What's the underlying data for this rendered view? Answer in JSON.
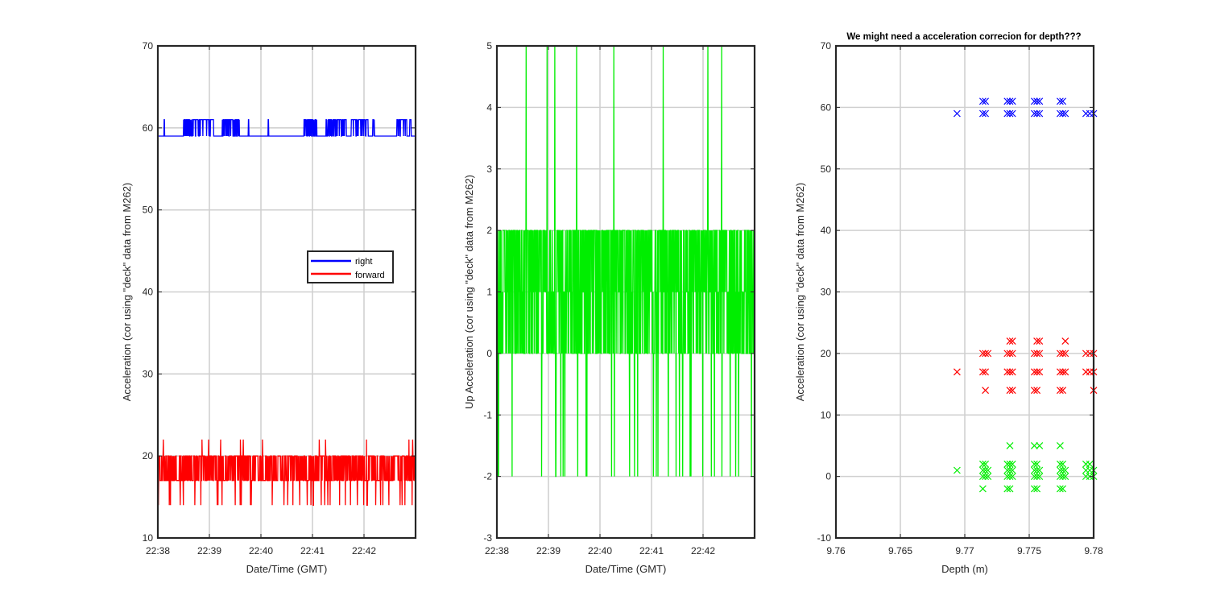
{
  "chart_data": [
    {
      "type": "line",
      "title": "",
      "xlabel": "Date/Time (GMT)",
      "ylabel": "Acceleration (cor using \"deck\" data from M262)",
      "ylim": [
        10,
        70
      ],
      "yticks": [
        "10",
        "20",
        "30",
        "40",
        "50",
        "60",
        "70"
      ],
      "xlim": [
        "22:38",
        "22:43"
      ],
      "xticks": [
        "22:38",
        "22:39",
        "22:40",
        "22:41",
        "22:42"
      ],
      "grid": true,
      "legend": {
        "placement": "center-right",
        "entries": [
          "right",
          "forward"
        ]
      },
      "series": [
        {
          "name": "right",
          "color": "#0000ff",
          "baseline": 59,
          "high": 61,
          "bursts": [
            [
              "22:38:07",
              "22:38:08"
            ],
            [
              "22:38:30",
              "22:39:05"
            ],
            [
              "22:39:15",
              "22:39:35"
            ],
            [
              "22:39:45",
              "22:39:46"
            ],
            [
              "22:40:08",
              "22:40:09"
            ],
            [
              "22:40:50",
              "22:41:05"
            ],
            [
              "22:41:15",
              "22:41:40"
            ],
            [
              "22:41:45",
              "22:42:05"
            ],
            [
              "22:42:10",
              "22:42:12"
            ],
            [
              "22:42:38",
              "22:42:50"
            ],
            [
              "22:42:53",
              "22:42:55"
            ]
          ]
        },
        {
          "name": "forward",
          "color": "#ff0000",
          "typical_range": [
            17,
            20
          ],
          "low_spikes": 14,
          "high_spikes": 22
        }
      ]
    },
    {
      "type": "line",
      "title": "",
      "xlabel": "Date/Time (GMT)",
      "ylabel": "Up Acceleration (cor using \"deck\" data from M262)",
      "ylim": [
        -3,
        5
      ],
      "yticks": [
        "-3",
        "-2",
        "-1",
        "0",
        "1",
        "2",
        "3",
        "4",
        "5"
      ],
      "xlim": [
        "22:38",
        "22:43"
      ],
      "xticks": [
        "22:38",
        "22:39",
        "22:40",
        "22:41",
        "22:42"
      ],
      "grid": true,
      "series": [
        {
          "name": "up",
          "color": "#00ee00",
          "typical_range": [
            0,
            2
          ],
          "low_spikes": -2,
          "high_spikes": 5
        }
      ]
    },
    {
      "type": "scatter",
      "title": "We might need a acceleration correcion for depth???",
      "xlabel": "Depth (m)",
      "ylabel": "Acceleration (cor using \"deck\" data from M262)",
      "xlim": [
        9.76,
        9.78
      ],
      "ylim": [
        -10,
        70
      ],
      "xticks": [
        "9.76",
        "9.765",
        "9.77",
        "9.775",
        "9.78"
      ],
      "yticks": [
        "-10",
        "0",
        "10",
        "20",
        "30",
        "40",
        "50",
        "60",
        "70"
      ],
      "grid": true,
      "marker": "x",
      "series": [
        {
          "color": "#0000ff",
          "points": [
            [
              9.7694,
              59
            ],
            [
              9.7714,
              59
            ],
            [
              9.7714,
              61
            ],
            [
              9.7716,
              59
            ],
            [
              9.7716,
              61
            ],
            [
              9.7733,
              59
            ],
            [
              9.7733,
              61
            ],
            [
              9.7735,
              59
            ],
            [
              9.7735,
              61
            ],
            [
              9.7737,
              59
            ],
            [
              9.7737,
              61
            ],
            [
              9.7754,
              59
            ],
            [
              9.7754,
              61
            ],
            [
              9.7756,
              59
            ],
            [
              9.7756,
              61
            ],
            [
              9.7758,
              59
            ],
            [
              9.7758,
              61
            ],
            [
              9.7774,
              59
            ],
            [
              9.7774,
              61
            ],
            [
              9.7776,
              59
            ],
            [
              9.7776,
              61
            ],
            [
              9.7778,
              59
            ],
            [
              9.7794,
              59
            ],
            [
              9.7797,
              59
            ],
            [
              9.78,
              59
            ]
          ]
        },
        {
          "color": "#ff0000",
          "points": [
            [
              9.7694,
              17
            ],
            [
              9.7714,
              17
            ],
            [
              9.7714,
              20
            ],
            [
              9.7716,
              14
            ],
            [
              9.7716,
              17
            ],
            [
              9.7716,
              20
            ],
            [
              9.7718,
              20
            ],
            [
              9.7733,
              17
            ],
            [
              9.7733,
              20
            ],
            [
              9.7735,
              14
            ],
            [
              9.7735,
              17
            ],
            [
              9.7735,
              20
            ],
            [
              9.7735,
              22
            ],
            [
              9.7737,
              14
            ],
            [
              9.7737,
              17
            ],
            [
              9.7737,
              20
            ],
            [
              9.7737,
              22
            ],
            [
              9.7754,
              14
            ],
            [
              9.7754,
              17
            ],
            [
              9.7754,
              20
            ],
            [
              9.7756,
              14
            ],
            [
              9.7756,
              17
            ],
            [
              9.7756,
              20
            ],
            [
              9.7756,
              22
            ],
            [
              9.7758,
              17
            ],
            [
              9.7758,
              20
            ],
            [
              9.7758,
              22
            ],
            [
              9.7774,
              14
            ],
            [
              9.7774,
              17
            ],
            [
              9.7774,
              20
            ],
            [
              9.7776,
              14
            ],
            [
              9.7776,
              17
            ],
            [
              9.7776,
              20
            ],
            [
              9.7778,
              17
            ],
            [
              9.7778,
              20
            ],
            [
              9.7778,
              22
            ],
            [
              9.7794,
              17
            ],
            [
              9.7794,
              20
            ],
            [
              9.7797,
              17
            ],
            [
              9.7797,
              20
            ],
            [
              9.78,
              14
            ],
            [
              9.78,
              17
            ],
            [
              9.78,
              20
            ]
          ]
        },
        {
          "color": "#00ee00",
          "points": [
            [
              9.7694,
              1
            ],
            [
              9.7714,
              -2
            ],
            [
              9.7714,
              0
            ],
            [
              9.7714,
              1
            ],
            [
              9.7714,
              2
            ],
            [
              9.7716,
              0
            ],
            [
              9.7716,
              1
            ],
            [
              9.7716,
              2
            ],
            [
              9.7718,
              0
            ],
            [
              9.7718,
              1
            ],
            [
              9.7733,
              -2
            ],
            [
              9.7733,
              0
            ],
            [
              9.7733,
              1
            ],
            [
              9.7733,
              2
            ],
            [
              9.7735,
              -2
            ],
            [
              9.7735,
              0
            ],
            [
              9.7735,
              1
            ],
            [
              9.7735,
              2
            ],
            [
              9.7735,
              5
            ],
            [
              9.7737,
              0
            ],
            [
              9.7737,
              1
            ],
            [
              9.7737,
              2
            ],
            [
              9.7754,
              -2
            ],
            [
              9.7754,
              0
            ],
            [
              9.7754,
              1
            ],
            [
              9.7754,
              2
            ],
            [
              9.7754,
              5
            ],
            [
              9.7756,
              -2
            ],
            [
              9.7756,
              0
            ],
            [
              9.7756,
              1
            ],
            [
              9.7756,
              2
            ],
            [
              9.7758,
              0
            ],
            [
              9.7758,
              1
            ],
            [
              9.7758,
              5
            ],
            [
              9.7774,
              -2
            ],
            [
              9.7774,
              0
            ],
            [
              9.7774,
              1
            ],
            [
              9.7774,
              2
            ],
            [
              9.7774,
              5
            ],
            [
              9.7776,
              -2
            ],
            [
              9.7776,
              0
            ],
            [
              9.7776,
              1
            ],
            [
              9.7776,
              2
            ],
            [
              9.7778,
              0
            ],
            [
              9.7778,
              1
            ],
            [
              9.7794,
              0
            ],
            [
              9.7794,
              1
            ],
            [
              9.7794,
              2
            ],
            [
              9.7797,
              0
            ],
            [
              9.7797,
              1
            ],
            [
              9.7797,
              2
            ],
            [
              9.78,
              0
            ],
            [
              9.78,
              1
            ]
          ]
        }
      ]
    }
  ]
}
